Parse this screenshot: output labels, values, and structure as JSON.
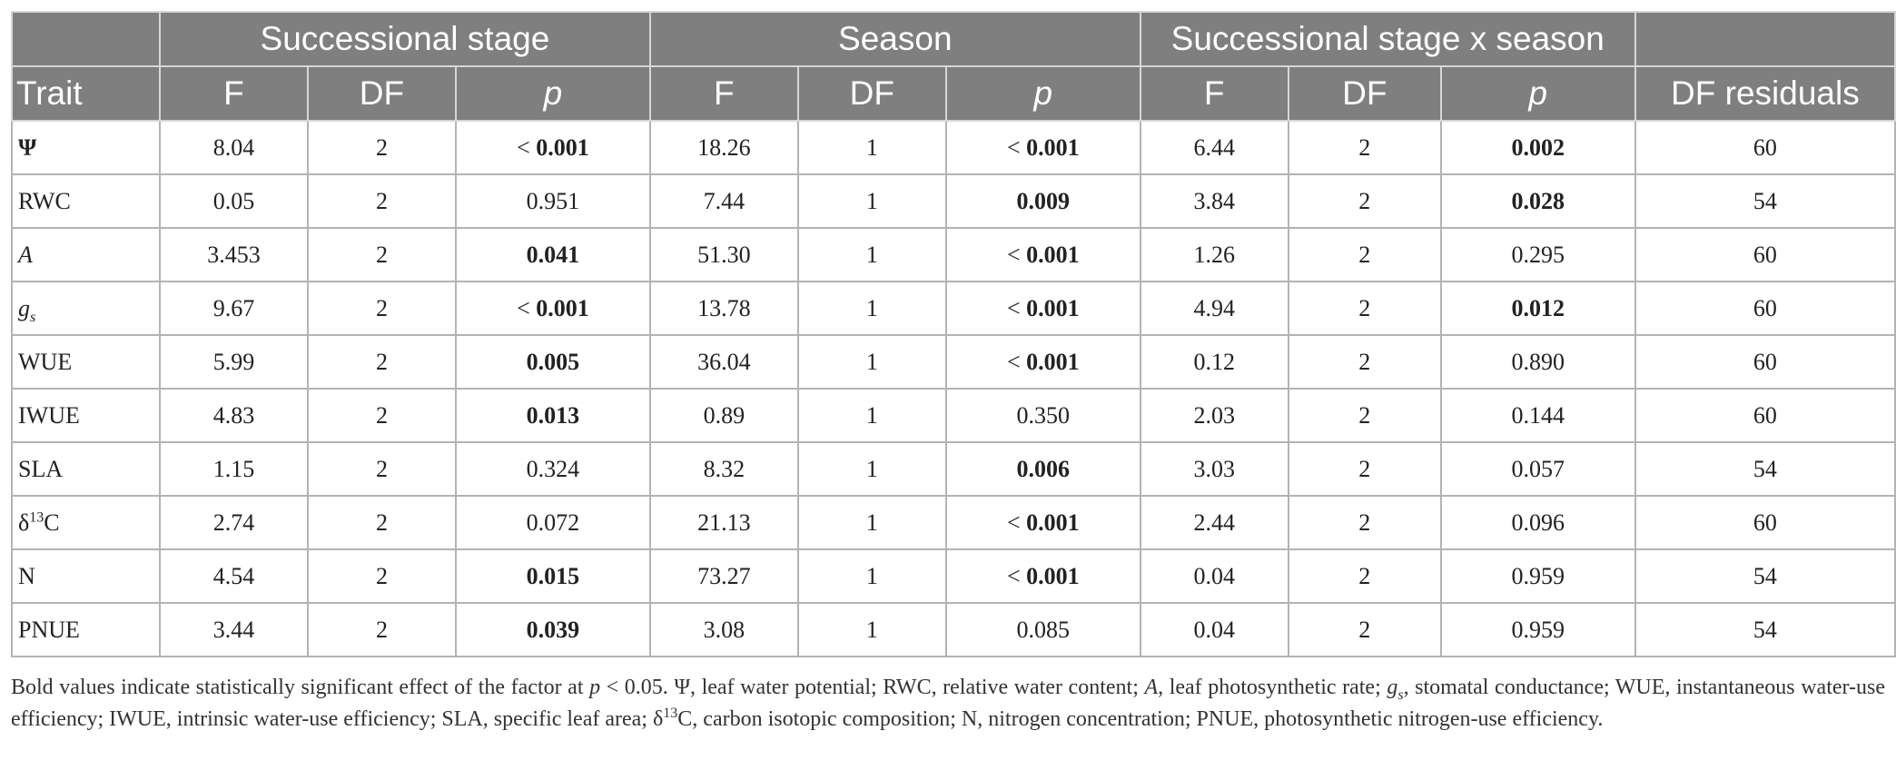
{
  "header": {
    "groups": [
      "Successional stage",
      "Season",
      "Successional stage x season"
    ],
    "columns": [
      "Trait",
      "F",
      "DF",
      "p",
      "F",
      "DF",
      "p",
      "F",
      "DF",
      "p",
      "DF residuals"
    ]
  },
  "rows": [
    {
      "trait": "Ψ",
      "ss_f": "8.04",
      "ss_df": "2",
      "ss_lt": "<",
      "ss_p": "0.001",
      "ss_sig": true,
      "se_f": "18.26",
      "se_df": "1",
      "se_lt": "<",
      "se_p": "0.001",
      "se_sig": true,
      "x_f": "6.44",
      "x_df": "2",
      "x_lt": "",
      "x_p": "0.002",
      "x_sig": true,
      "resid": "60"
    },
    {
      "trait": "RWC",
      "ss_f": "0.05",
      "ss_df": "2",
      "ss_lt": "",
      "ss_p": "0.951",
      "ss_sig": false,
      "se_f": "7.44",
      "se_df": "1",
      "se_lt": "",
      "se_p": "0.009",
      "se_sig": true,
      "x_f": "3.84",
      "x_df": "2",
      "x_lt": "",
      "x_p": "0.028",
      "x_sig": true,
      "resid": "54"
    },
    {
      "trait": "A",
      "ss_f": "3.453",
      "ss_df": "2",
      "ss_lt": "",
      "ss_p": "0.041",
      "ss_sig": true,
      "se_f": "51.30",
      "se_df": "1",
      "se_lt": "<",
      "se_p": "0.001",
      "se_sig": true,
      "x_f": "1.26",
      "x_df": "2",
      "x_lt": "",
      "x_p": "0.295",
      "x_sig": false,
      "resid": "60"
    },
    {
      "trait": "g",
      "trait_sub": "s",
      "ss_f": "9.67",
      "ss_df": "2",
      "ss_lt": "<",
      "ss_p": "0.001",
      "ss_sig": true,
      "se_f": "13.78",
      "se_df": "1",
      "se_lt": "<",
      "se_p": "0.001",
      "se_sig": true,
      "x_f": "4.94",
      "x_df": "2",
      "x_lt": "",
      "x_p": "0.012",
      "x_sig": true,
      "resid": "60"
    },
    {
      "trait": "WUE",
      "ss_f": "5.99",
      "ss_df": "2",
      "ss_lt": "",
      "ss_p": "0.005",
      "ss_sig": true,
      "se_f": "36.04",
      "se_df": "1",
      "se_lt": "<",
      "se_p": "0.001",
      "se_sig": true,
      "x_f": "0.12",
      "x_df": "2",
      "x_lt": "",
      "x_p": "0.890",
      "x_sig": false,
      "resid": "60"
    },
    {
      "trait": "IWUE",
      "ss_f": "4.83",
      "ss_df": "2",
      "ss_lt": "",
      "ss_p": "0.013",
      "ss_sig": true,
      "se_f": "0.89",
      "se_df": "1",
      "se_lt": "",
      "se_p": "0.350",
      "se_sig": false,
      "x_f": "2.03",
      "x_df": "2",
      "x_lt": "",
      "x_p": "0.144",
      "x_sig": false,
      "resid": "60"
    },
    {
      "trait": "SLA",
      "ss_f": "1.15",
      "ss_df": "2",
      "ss_lt": "",
      "ss_p": "0.324",
      "ss_sig": false,
      "se_f": "8.32",
      "se_df": "1",
      "se_lt": "",
      "se_p": "0.006",
      "se_sig": true,
      "x_f": "3.03",
      "x_df": "2",
      "x_lt": "",
      "x_p": "0.057",
      "x_sig": false,
      "resid": "54"
    },
    {
      "trait": "δ",
      "trait_sup": "13",
      "trait_tail": "C",
      "ss_f": "2.74",
      "ss_df": "2",
      "ss_lt": "",
      "ss_p": "0.072",
      "ss_sig": false,
      "se_f": "21.13",
      "se_df": "1",
      "se_lt": "<",
      "se_p": "0.001",
      "se_sig": true,
      "x_f": "2.44",
      "x_df": "2",
      "x_lt": "",
      "x_p": "0.096",
      "x_sig": false,
      "resid": "60"
    },
    {
      "trait": "N",
      "ss_f": "4.54",
      "ss_df": "2",
      "ss_lt": "",
      "ss_p": "0.015",
      "ss_sig": true,
      "se_f": "73.27",
      "se_df": "1",
      "se_lt": "<",
      "se_p": "0.001",
      "se_sig": true,
      "x_f": "0.04",
      "x_df": "2",
      "x_lt": "",
      "x_p": "0.959",
      "x_sig": false,
      "resid": "54"
    },
    {
      "trait": "PNUE",
      "ss_f": "3.44",
      "ss_df": "2",
      "ss_lt": "",
      "ss_p": "0.039",
      "ss_sig": true,
      "se_f": "3.08",
      "se_df": "1",
      "se_lt": "",
      "se_p": "0.085",
      "se_sig": false,
      "x_f": "0.04",
      "x_df": "2",
      "x_lt": "",
      "x_p": "0.959",
      "x_sig": false,
      "resid": "54"
    }
  ],
  "caption": {
    "s1": "Bold values indicate statistically significant effect of the factor at",
    "s1_p": "p",
    "s1_b": "< 0.05. Ψ, leaf water potential; RWC, relative water content;",
    "s1_A": "A",
    "s1_c": ", leaf photosynthetic rate;",
    "s1_g": "g",
    "s1_gs": "s",
    "s1_d": ", stomatal conductance; WUE, instantaneous water-use efficiency; IWUE, intrinsic water-use efficiency; SLA, specific leaf area; δ",
    "s1_13": "13",
    "s1_e": "C, carbon isotopic composition; N, nitrogen concentration; PNUE, photosynthetic nitrogen-use efficiency."
  }
}
